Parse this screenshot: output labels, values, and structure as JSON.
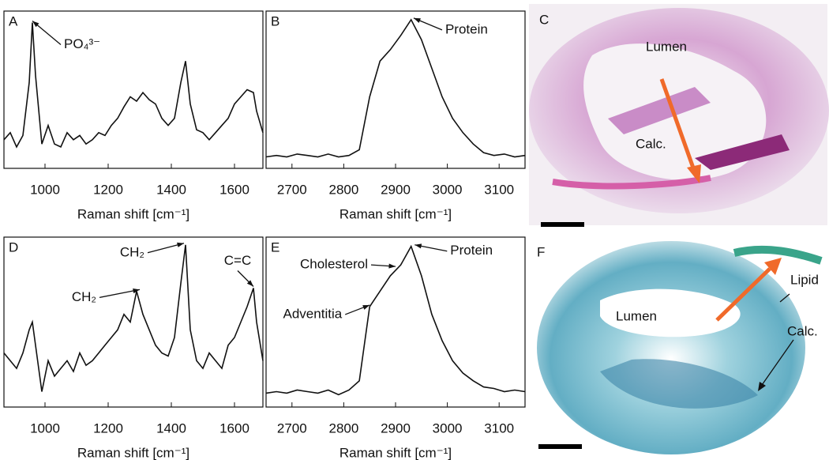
{
  "chart_data": [
    {
      "type": "line",
      "panel": "A",
      "x_label": "Raman shift [cm⁻¹]",
      "x": [
        870,
        890,
        910,
        930,
        950,
        960,
        970,
        990,
        1010,
        1030,
        1050,
        1070,
        1090,
        1110,
        1130,
        1150,
        1170,
        1190,
        1210,
        1230,
        1250,
        1270,
        1290,
        1310,
        1330,
        1350,
        1370,
        1390,
        1410,
        1430,
        1445,
        1460,
        1480,
        1500,
        1520,
        1540,
        1560,
        1580,
        1600,
        1620,
        1640,
        1660,
        1670,
        1690
      ],
      "values": [
        0.15,
        0.2,
        0.1,
        0.18,
        0.55,
        0.97,
        0.6,
        0.12,
        0.25,
        0.12,
        0.1,
        0.2,
        0.15,
        0.18,
        0.12,
        0.15,
        0.2,
        0.18,
        0.25,
        0.3,
        0.38,
        0.45,
        0.42,
        0.48,
        0.43,
        0.4,
        0.3,
        0.25,
        0.3,
        0.55,
        0.7,
        0.4,
        0.22,
        0.2,
        0.15,
        0.2,
        0.25,
        0.3,
        0.4,
        0.45,
        0.5,
        0.48,
        0.35,
        0.2
      ],
      "color": "#111111",
      "xlim": [
        870,
        1690
      ],
      "ylim": [
        -0.05,
        1.05
      ],
      "xticks": [
        1000,
        1200,
        1400,
        1600
      ],
      "annotations": [
        {
          "text": "PO₄³⁻",
          "x": 960,
          "y": 0.97
        }
      ]
    },
    {
      "type": "line",
      "panel": "B",
      "x_label": "Raman shift [cm⁻¹]",
      "x": [
        2650,
        2670,
        2690,
        2710,
        2730,
        2750,
        2770,
        2790,
        2810,
        2830,
        2850,
        2870,
        2890,
        2910,
        2930,
        2950,
        2970,
        2990,
        3010,
        3030,
        3050,
        3070,
        3090,
        3110,
        3130,
        3150
      ],
      "values": [
        0.03,
        0.04,
        0.03,
        0.05,
        0.04,
        0.03,
        0.05,
        0.03,
        0.04,
        0.08,
        0.45,
        0.7,
        0.78,
        0.88,
        0.99,
        0.85,
        0.65,
        0.45,
        0.3,
        0.2,
        0.12,
        0.06,
        0.04,
        0.05,
        0.03,
        0.04
      ],
      "color": "#111111",
      "xlim": [
        2650,
        3150
      ],
      "ylim": [
        -0.05,
        1.05
      ],
      "xticks": [
        2700,
        2800,
        2900,
        3000,
        3100
      ],
      "annotations": [
        {
          "text": "Protein",
          "x": 2935,
          "y": 0.99
        }
      ]
    },
    {
      "type": "line",
      "panel": "D",
      "x_label": "Raman shift [cm⁻¹]",
      "x": [
        870,
        890,
        910,
        930,
        950,
        960,
        970,
        990,
        1010,
        1030,
        1050,
        1070,
        1090,
        1110,
        1130,
        1150,
        1170,
        1190,
        1210,
        1230,
        1250,
        1270,
        1290,
        1310,
        1330,
        1350,
        1370,
        1390,
        1410,
        1430,
        1445,
        1460,
        1480,
        1500,
        1520,
        1540,
        1560,
        1580,
        1600,
        1620,
        1640,
        1660,
        1670,
        1690
      ],
      "values": [
        0.3,
        0.25,
        0.2,
        0.3,
        0.45,
        0.5,
        0.35,
        0.05,
        0.25,
        0.15,
        0.2,
        0.25,
        0.18,
        0.3,
        0.22,
        0.25,
        0.3,
        0.35,
        0.4,
        0.45,
        0.55,
        0.5,
        0.7,
        0.55,
        0.45,
        0.35,
        0.3,
        0.28,
        0.4,
        0.75,
        1.0,
        0.45,
        0.25,
        0.2,
        0.3,
        0.25,
        0.2,
        0.35,
        0.4,
        0.5,
        0.6,
        0.72,
        0.5,
        0.25
      ],
      "color": "#111111",
      "xlim": [
        870,
        1690
      ],
      "ylim": [
        -0.05,
        1.05
      ],
      "xticks": [
        1000,
        1200,
        1400,
        1600
      ],
      "annotations": [
        {
          "text": "CH₂",
          "x": 1300,
          "y": 0.7
        },
        {
          "text": "CH₂",
          "x": 1440,
          "y": 1.0
        },
        {
          "text": "C=C",
          "x": 1660,
          "y": 0.72
        }
      ]
    },
    {
      "type": "line",
      "panel": "E",
      "x_label": "Raman shift [cm⁻¹]",
      "x": [
        2650,
        2670,
        2690,
        2710,
        2730,
        2750,
        2770,
        2790,
        2810,
        2830,
        2850,
        2870,
        2890,
        2910,
        2930,
        2950,
        2970,
        2990,
        3010,
        3030,
        3050,
        3070,
        3090,
        3110,
        3130,
        3150
      ],
      "values": [
        0.04,
        0.05,
        0.04,
        0.06,
        0.05,
        0.04,
        0.06,
        0.03,
        0.06,
        0.12,
        0.6,
        0.7,
        0.8,
        0.87,
        0.99,
        0.8,
        0.55,
        0.38,
        0.25,
        0.17,
        0.12,
        0.08,
        0.07,
        0.05,
        0.06,
        0.05
      ],
      "color": "#111111",
      "xlim": [
        2650,
        3150
      ],
      "ylim": [
        -0.05,
        1.05
      ],
      "xticks": [
        2700,
        2800,
        2900,
        3000,
        3100
      ],
      "annotations": [
        {
          "text": "Protein",
          "x": 2937,
          "y": 0.99
        },
        {
          "text": "Cholesterol",
          "x": 2900,
          "y": 0.85
        },
        {
          "text": "Adventitia",
          "x": 2850,
          "y": 0.6
        }
      ]
    }
  ],
  "images": [
    {
      "panel": "C",
      "labels": [
        "Lumen",
        "Calc."
      ]
    },
    {
      "panel": "F",
      "labels": [
        "Lumen",
        "Lipid",
        "Calc."
      ]
    }
  ]
}
